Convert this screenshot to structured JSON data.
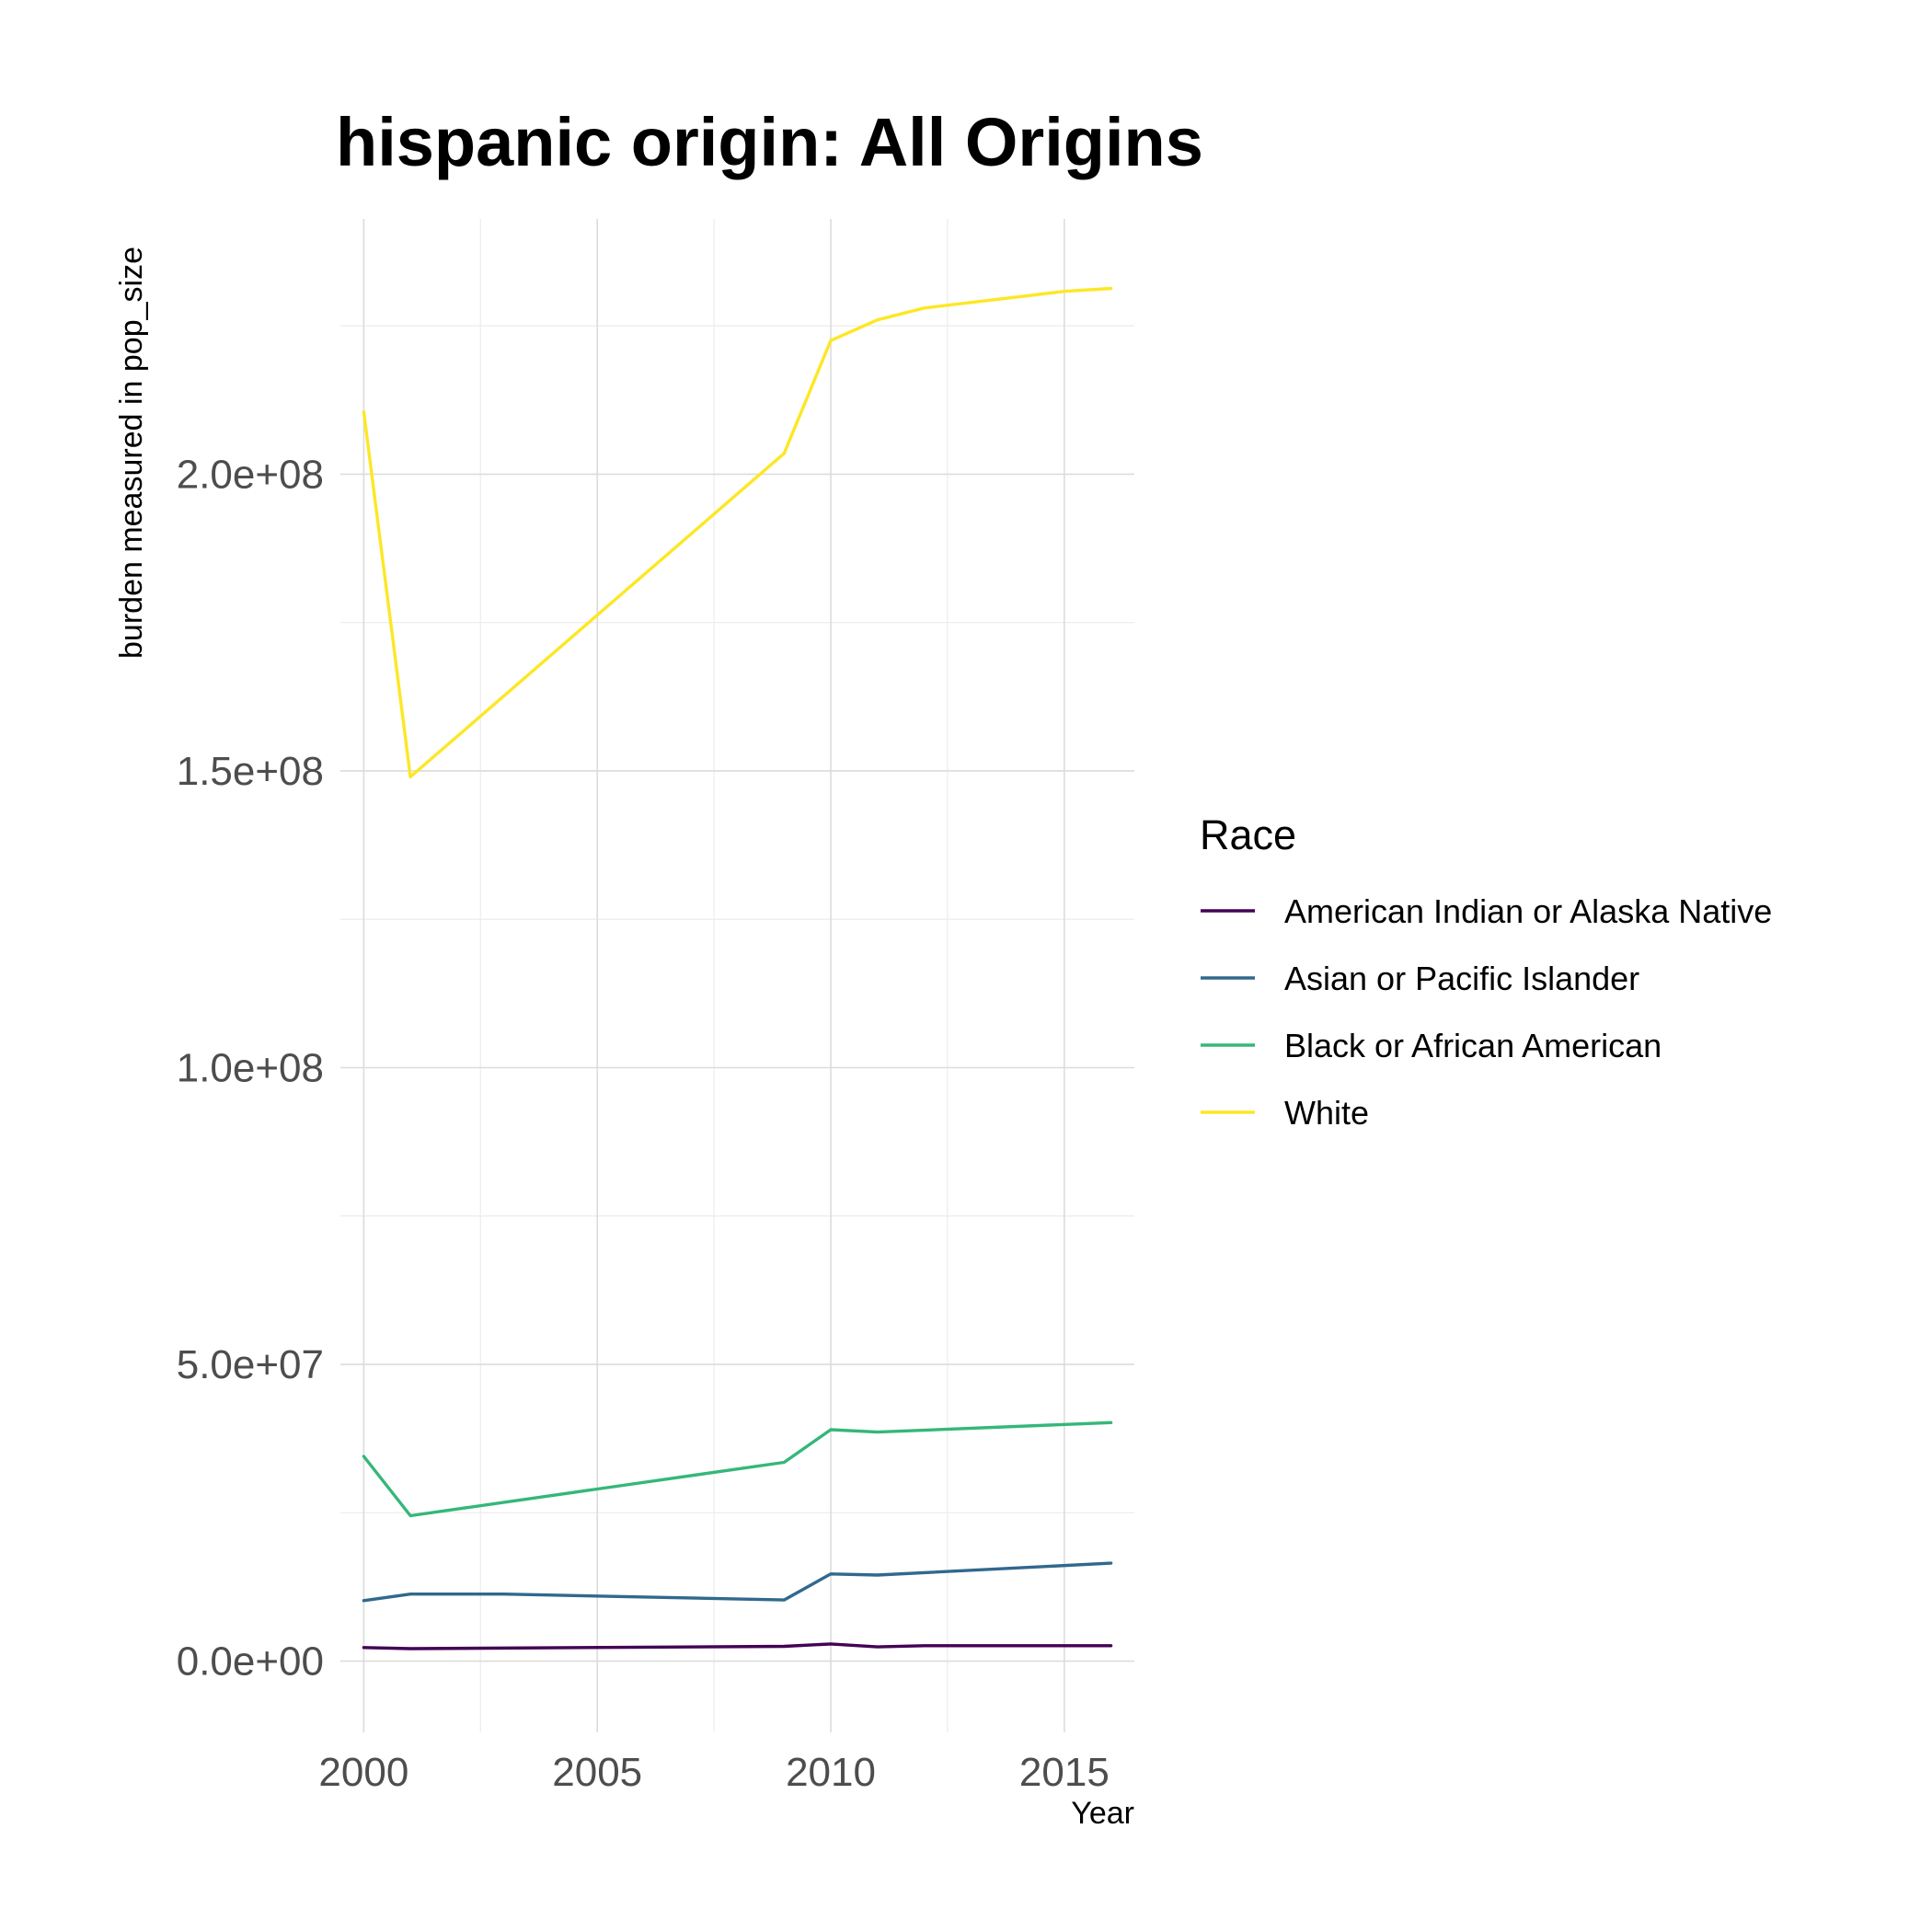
{
  "chart_data": {
    "type": "line",
    "title": "hispanic origin: All Origins",
    "xlabel": "Year",
    "ylabel": "burden measured in pop_size",
    "xlim": [
      1999.5,
      2016.5
    ],
    "ylim": [
      -12000000,
      243000000
    ],
    "x_ticks": [
      2000,
      2005,
      2010,
      2015
    ],
    "x_tick_labels": [
      "2000",
      "2005",
      "2010",
      "2015"
    ],
    "y_ticks": [
      0,
      50000000,
      100000000,
      150000000,
      200000000
    ],
    "y_tick_labels": [
      "0.0e+00",
      "5.0e+07",
      "1.0e+08",
      "1.5e+08",
      "2.0e+08"
    ],
    "grid": true,
    "legend": {
      "title": "Race",
      "position": "right"
    },
    "series": [
      {
        "name": "American Indian or Alaska Native",
        "color": "#440154",
        "x": [
          2000,
          2001,
          2009,
          2010,
          2011,
          2012,
          2016
        ],
        "y": [
          2300000,
          2100000,
          2500000,
          2900000,
          2400000,
          2600000,
          2600000
        ]
      },
      {
        "name": "Asian or Pacific Islander",
        "color": "#31688e",
        "x": [
          2000,
          2001,
          2003,
          2009,
          2010,
          2011,
          2016
        ],
        "y": [
          10200000,
          11300000,
          11300000,
          10300000,
          14700000,
          14500000,
          16500000
        ]
      },
      {
        "name": "Black or African American",
        "color": "#35b779",
        "x": [
          2000,
          2001,
          2005,
          2009,
          2010,
          2011,
          2016
        ],
        "y": [
          34500000,
          24500000,
          29000000,
          33500000,
          39000000,
          38600000,
          40200000
        ]
      },
      {
        "name": "White",
        "color": "#fde725",
        "x": [
          2000,
          2001,
          2009,
          2010,
          2011,
          2012,
          2015,
          2016
        ],
        "y": [
          210500000,
          149000000,
          203500000,
          222500000,
          226000000,
          228000000,
          230800000,
          231300000
        ]
      }
    ]
  }
}
